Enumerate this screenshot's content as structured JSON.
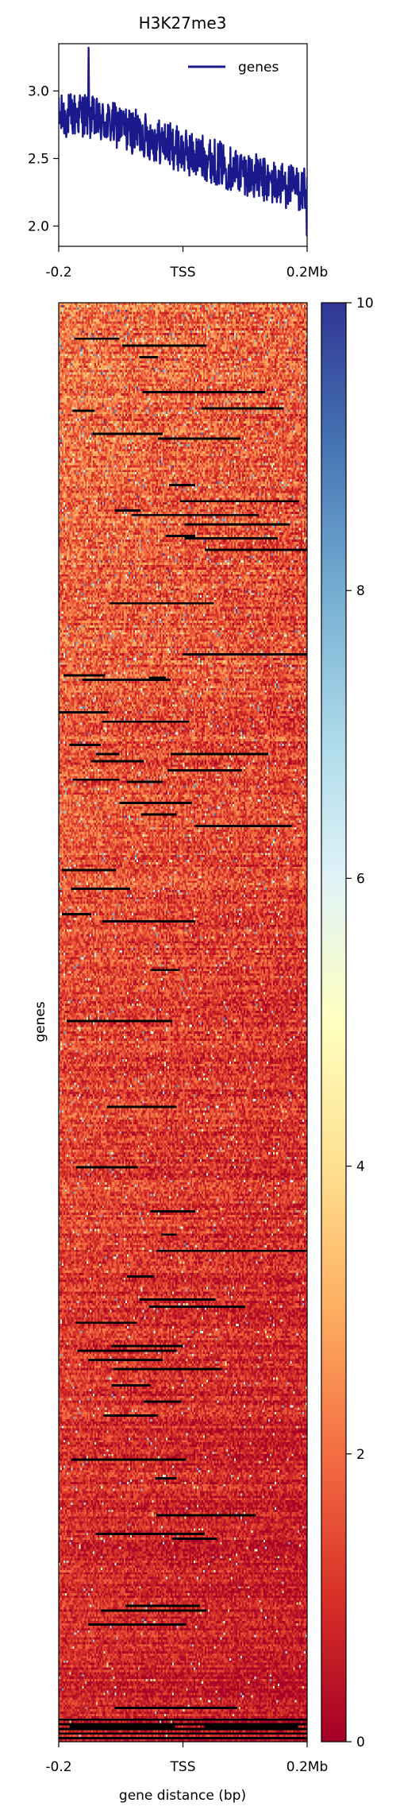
{
  "chart_data": [
    {
      "type": "line",
      "title": "H3K27me3",
      "xlabel": "",
      "ylabel": "",
      "x_tick_labels": [
        "-0.2",
        "TSS",
        "0.2Mb"
      ],
      "y_ticks": [
        2.0,
        2.5,
        3.0
      ],
      "ylim": [
        1.85,
        3.35
      ],
      "legend": "top-right",
      "series": [
        {
          "name": "genes",
          "color": "#1a1a8c",
          "x_range_mb": [
            -0.2,
            0.2
          ],
          "mean_trend": [
            2.8,
            2.82,
            2.83,
            2.78,
            2.76,
            2.73,
            2.7,
            2.67,
            2.63,
            2.6,
            2.55,
            2.52,
            2.5,
            2.46,
            2.42,
            2.4,
            2.36,
            2.32,
            2.31,
            2.28,
            2.26
          ],
          "noise_amplitude": 0.17,
          "peak": 3.32,
          "min": 1.93
        }
      ]
    },
    {
      "type": "heatmap",
      "xlabel": "gene distance (bp)",
      "ylabel": "genes",
      "x_tick_labels": [
        "-0.2",
        "TSS",
        "0.2Mb"
      ],
      "colormap": "RdYlBu",
      "colors": [
        "#a50026",
        "#d73027",
        "#f46d43",
        "#fdae61",
        "#fee090",
        "#ffffbf",
        "#e0f3f8",
        "#abd9e9",
        "#74add1",
        "#4575b4",
        "#313695"
      ],
      "value_range": [
        0,
        10
      ],
      "colorbar_ticks": [
        0,
        2,
        4,
        6,
        8,
        10
      ],
      "missing_color": "#000000"
    }
  ]
}
